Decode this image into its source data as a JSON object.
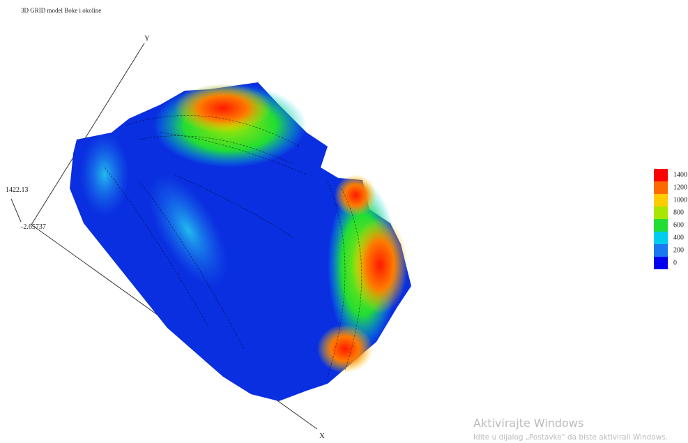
{
  "header": {
    "title": "3D GRID model Boke i okoline"
  },
  "axes": {
    "y_label": "Y",
    "x_label": "X",
    "z_max": "1422.13",
    "z_min": "-2.65737"
  },
  "legend": [
    {
      "value": 1400,
      "color": "#ff0000"
    },
    {
      "value": 1200,
      "color": "#ff6a00"
    },
    {
      "value": 1000,
      "color": "#ffcc00"
    },
    {
      "value": 800,
      "color": "#a8e600"
    },
    {
      "value": 600,
      "color": "#22dd33"
    },
    {
      "value": 400,
      "color": "#00ccee"
    },
    {
      "value": 200,
      "color": "#1a78f0"
    },
    {
      "value": 0,
      "color": "#0000ee"
    }
  ],
  "watermark": {
    "title": "Aktivirajte Windows",
    "text": "Idite u dijalog „Postavke\" da biste aktivirali Windows."
  }
}
